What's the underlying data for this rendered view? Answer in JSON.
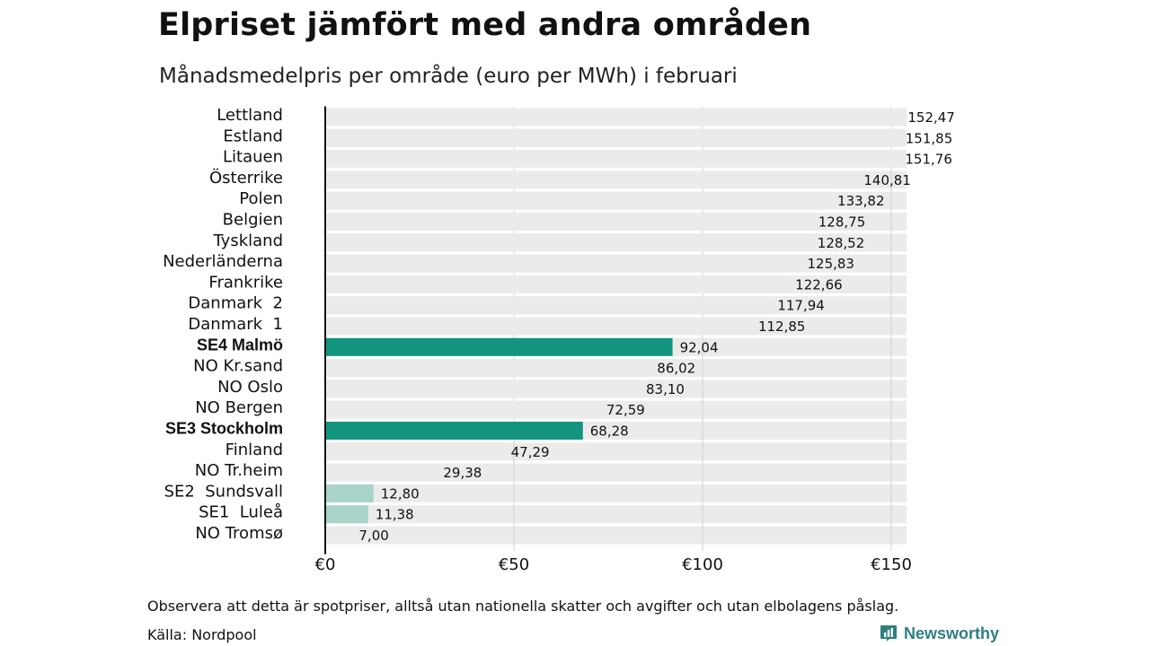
{
  "title": "Elpriset jämfört med andra områden",
  "subtitle": "Månadsmedelpris per område (euro per MWh) i februari",
  "note": "Observera att detta är spotpriser, alltså utan nationella skatter och avgifter och utan elbolagens påslag.",
  "source": "Källa: Nordpool",
  "brand": {
    "name": "Newsworthy",
    "icon": "newsworthy-logo-icon",
    "color": "#2e7f80"
  },
  "colors": {
    "background_bar": "#ebebeb",
    "highlight": "#13947f",
    "highlight_light": "#a8d4ca",
    "grid": "#d0d0d0",
    "axis": "#111111"
  },
  "chart_data": {
    "type": "bar",
    "orientation": "horizontal",
    "categories": [
      "Lettland",
      "Estland",
      "Litauen",
      "Österrike",
      "Polen",
      "Belgien",
      "Tyskland",
      "Nederländerna",
      "Frankrike",
      "Danmark  2",
      "Danmark  1",
      "SE4 Malmö",
      "NO Kr.sand",
      "NO Oslo",
      "NO Bergen",
      "SE3 Stockholm",
      "Finland",
      "NO Tr.heim",
      "SE2  Sundsvall",
      "SE1  Luleå",
      "NO Tromsø"
    ],
    "values": [
      152.47,
      151.85,
      151.76,
      140.81,
      133.82,
      128.75,
      128.52,
      125.83,
      122.66,
      117.94,
      112.85,
      92.04,
      86.02,
      83.1,
      72.59,
      68.28,
      47.29,
      29.38,
      12.8,
      11.38,
      7.0
    ],
    "value_labels": [
      "152,47",
      "151,85",
      "151,76",
      "140,81",
      "133,82",
      "128,75",
      "128,52",
      "125,83",
      "122,66",
      "117,94",
      "112,85",
      "92,04",
      "86,02",
      "83,10",
      "72,59",
      "68,28",
      "47,29",
      "29,38",
      "12,80",
      "11,38",
      "7,00"
    ],
    "highlight": [
      "none",
      "none",
      "none",
      "none",
      "none",
      "none",
      "none",
      "none",
      "none",
      "none",
      "none",
      "strong",
      "none",
      "none",
      "none",
      "strong",
      "none",
      "none",
      "light",
      "light",
      "none"
    ],
    "bold_labels": [
      "SE4 Malmö",
      "SE3 Stockholm"
    ],
    "background_bars": true,
    "xlim": [
      0,
      155
    ],
    "xticks": [
      0,
      50,
      100,
      150
    ],
    "xtick_labels": [
      "€0",
      "€50",
      "€100",
      "€150"
    ],
    "grid": true
  }
}
